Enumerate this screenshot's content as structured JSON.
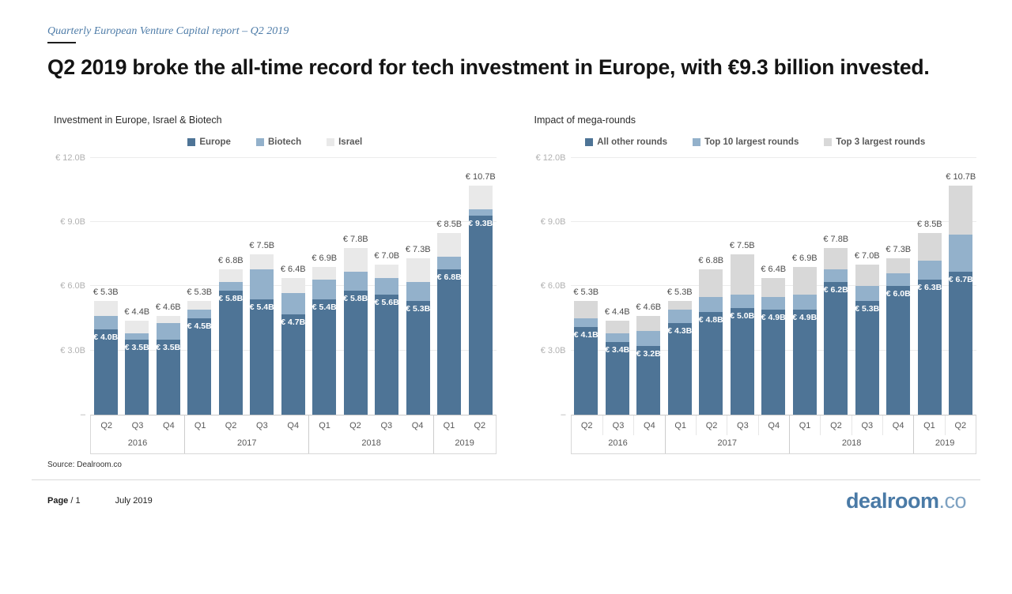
{
  "page": {
    "eyebrow": "Quarterly European Venture Capital report – Q2 2019",
    "headline": "Q2 2019 broke the all-time record for tech investment in Europe, with €9.3 billion invested.",
    "source": "Source: Dealroom.co",
    "footer": {
      "page_label": "Page",
      "page_number": "/ 1",
      "date": "July 2019",
      "logo_main": "dealroom",
      "logo_suffix": ".co"
    }
  },
  "colors": {
    "accent_dark_blue": "#4E7496",
    "accent_light_blue": "#93B1CB",
    "israel_gray": "#E9E9E9",
    "top3_gray": "#D8D8D8",
    "eyebrow_blue": "#4E7CA8",
    "logo_blue": "#4A7AA6"
  },
  "chart_data": [
    {
      "type": "bar",
      "stacked": true,
      "title": "Investment  in Europe, Israel & Biotech",
      "legend_position": "top",
      "grid": true,
      "y_axis": {
        "max": 12,
        "ticks": [
          {
            "label": "€ 12.0B",
            "value": 12
          },
          {
            "label": "€ 9.0B",
            "value": 9
          },
          {
            "label": "€ 6.0B",
            "value": 6
          },
          {
            "label": "€ 3.0B",
            "value": 3
          },
          {
            "label": "–",
            "value": 0
          }
        ]
      },
      "categories": [
        "Q2",
        "Q3",
        "Q4",
        "Q1",
        "Q2",
        "Q3",
        "Q4",
        "Q1",
        "Q2",
        "Q3",
        "Q4",
        "Q1",
        "Q2"
      ],
      "year_groups": [
        {
          "year": "2016",
          "span": 3
        },
        {
          "year": "2017",
          "span": 4
        },
        {
          "year": "2018",
          "span": 4
        },
        {
          "year": "2019",
          "span": 2
        }
      ],
      "series": [
        {
          "name": "Europe",
          "color": "#4E7496",
          "values": [
            4.0,
            3.5,
            3.5,
            4.5,
            5.8,
            5.4,
            4.7,
            5.4,
            5.8,
            5.6,
            5.3,
            6.8,
            9.3
          ]
        },
        {
          "name": "Biotech",
          "color": "#93B1CB",
          "values": [
            0.6,
            0.3,
            0.8,
            0.4,
            0.4,
            1.4,
            1.0,
            0.9,
            0.9,
            0.8,
            0.9,
            0.6,
            0.3
          ]
        },
        {
          "name": "Israel",
          "color": "#E9E9E9",
          "values": [
            0.7,
            0.6,
            0.3,
            0.4,
            0.6,
            0.7,
            0.7,
            0.6,
            1.1,
            0.6,
            1.1,
            1.1,
            1.1
          ]
        }
      ],
      "totals": [
        5.3,
        4.4,
        4.6,
        5.3,
        6.8,
        7.5,
        6.4,
        6.9,
        7.8,
        7.0,
        7.3,
        8.5,
        10.7
      ],
      "total_labels": [
        "€ 5.3B",
        "€ 4.4B",
        "€ 4.6B",
        "€ 5.3B",
        "€ 6.8B",
        "€ 7.5B",
        "€ 6.4B",
        "€ 6.9B",
        "€ 7.8B",
        "€ 7.0B",
        "€ 7.3B",
        "€ 8.5B",
        "€ 10.7B"
      ],
      "bottom_labels": [
        "€ 4.0B",
        "€ 3.5B",
        "€ 3.5B",
        "€ 4.5B",
        "€ 5.8B",
        "€ 5.4B",
        "€ 4.7B",
        "€ 5.4B",
        "€ 5.8B",
        "€ 5.6B",
        "€ 5.3B",
        "€ 6.8B",
        "€ 9.3B"
      ],
      "quarter_separators": false
    },
    {
      "type": "bar",
      "stacked": true,
      "title": "Impact  of mega-rounds",
      "legend_position": "top",
      "grid": true,
      "y_axis": {
        "max": 12,
        "ticks": [
          {
            "label": "€ 12.0B",
            "value": 12
          },
          {
            "label": "€ 9.0B",
            "value": 9
          },
          {
            "label": "€ 6.0B",
            "value": 6
          },
          {
            "label": "€ 3.0B",
            "value": 3
          },
          {
            "label": "–",
            "value": 0
          }
        ]
      },
      "categories": [
        "Q2",
        "Q3",
        "Q4",
        "Q1",
        "Q2",
        "Q3",
        "Q4",
        "Q1",
        "Q2",
        "Q3",
        "Q4",
        "Q1",
        "Q2"
      ],
      "year_groups": [
        {
          "year": "2016",
          "span": 3
        },
        {
          "year": "2017",
          "span": 4
        },
        {
          "year": "2018",
          "span": 4
        },
        {
          "year": "2019",
          "span": 2
        }
      ],
      "series": [
        {
          "name": "All other rounds",
          "color": "#4E7496",
          "values": [
            4.1,
            3.4,
            3.2,
            4.3,
            4.8,
            5.0,
            4.9,
            4.9,
            6.2,
            5.3,
            6.0,
            6.3,
            6.7
          ]
        },
        {
          "name": "Top 10 largest rounds",
          "color": "#93B1CB",
          "values": [
            0.4,
            0.4,
            0.7,
            0.6,
            0.7,
            0.6,
            0.6,
            0.7,
            0.6,
            0.7,
            0.6,
            0.9,
            1.7
          ]
        },
        {
          "name": "Top 3 largest rounds",
          "color": "#D8D8D8",
          "values": [
            0.8,
            0.6,
            0.7,
            0.4,
            1.3,
            1.9,
            0.9,
            1.3,
            1.0,
            1.0,
            0.7,
            1.3,
            2.3
          ]
        }
      ],
      "totals": [
        5.3,
        4.4,
        4.6,
        5.3,
        6.8,
        7.5,
        6.4,
        6.9,
        7.8,
        7.0,
        7.3,
        8.5,
        10.7
      ],
      "total_labels": [
        "€ 5.3B",
        "€ 4.4B",
        "€ 4.6B",
        "€ 5.3B",
        "€ 6.8B",
        "€ 7.5B",
        "€ 6.4B",
        "€ 6.9B",
        "€ 7.8B",
        "€ 7.0B",
        "€ 7.3B",
        "€ 8.5B",
        "€ 10.7B"
      ],
      "bottom_labels": [
        "€ 4.1B",
        "€ 3.4B",
        "€ 3.2B",
        "€ 4.3B",
        "€ 4.8B",
        "€ 5.0B",
        "€ 4.9B",
        "€ 4.9B",
        "€ 6.2B",
        "€ 5.3B",
        "€ 6.0B",
        "€ 6.3B",
        "€ 6.7B"
      ],
      "quarter_separators": true
    }
  ]
}
